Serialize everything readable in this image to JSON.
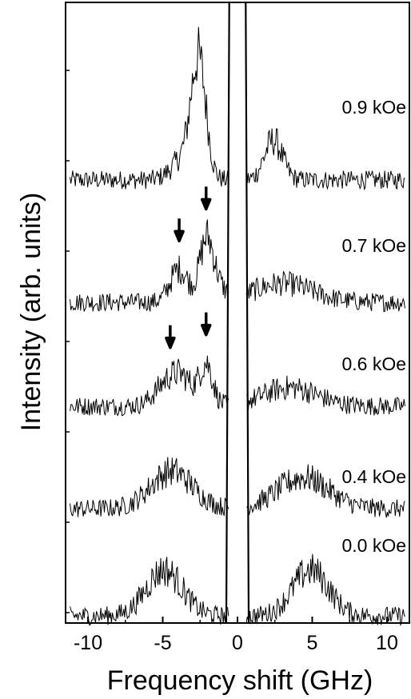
{
  "chart_data": {
    "type": "line",
    "title": "",
    "xlabel": "Frequency shift (GHz)",
    "ylabel": "Intensity (arb. units)",
    "xlim": [
      -11.5,
      11.5
    ],
    "x_ticks": [
      -10,
      -5,
      0,
      5,
      10
    ],
    "x_tick_labels": [
      "-10",
      "-5",
      "0",
      "5",
      "10"
    ],
    "grid": false,
    "legend": "none",
    "series": [
      {
        "name": "0.9 kOe",
        "label": "0.9 kOe",
        "peaks": [
          {
            "x": -2.6,
            "height": 5.5,
            "width": 0.5
          },
          {
            "x": -3.6,
            "height": 1.0,
            "width": 0.8
          },
          {
            "x": 2.4,
            "height": 1.9,
            "width": 0.6
          }
        ],
        "arrows": []
      },
      {
        "name": "0.7 kOe",
        "label": "0.7 kOe",
        "peaks": [
          {
            "x": -2.1,
            "height": 2.6,
            "width": 0.45
          },
          {
            "x": -3.9,
            "height": 1.6,
            "width": 0.6
          },
          {
            "x": -1.5,
            "height": 0.8,
            "width": 0.6
          },
          {
            "x": 3.0,
            "height": 0.9,
            "width": 2.0
          }
        ],
        "arrows": [
          -3.9,
          -2.1
        ]
      },
      {
        "name": "0.6 kOe",
        "label": "0.6 kOe",
        "peaks": [
          {
            "x": -2.1,
            "height": 2.0,
            "width": 0.45
          },
          {
            "x": -4.5,
            "height": 1.3,
            "width": 0.9
          },
          {
            "x": -3.5,
            "height": 0.7,
            "width": 0.6
          },
          {
            "x": 3.5,
            "height": 0.9,
            "width": 1.8
          }
        ],
        "arrows": [
          -4.5,
          -2.1
        ]
      },
      {
        "name": "0.4 kOe",
        "label": "0.4 kOe",
        "peaks": [
          {
            "x": -4.4,
            "height": 1.8,
            "width": 1.4
          },
          {
            "x": 4.4,
            "height": 1.5,
            "width": 1.7
          }
        ],
        "arrows": []
      },
      {
        "name": "0.0 kOe",
        "label": "0.0 kOe",
        "peaks": [
          {
            "x": -4.9,
            "height": 2.2,
            "width": 1.2
          },
          {
            "x": 4.9,
            "height": 2.2,
            "width": 1.2
          }
        ],
        "arrows": []
      }
    ]
  }
}
